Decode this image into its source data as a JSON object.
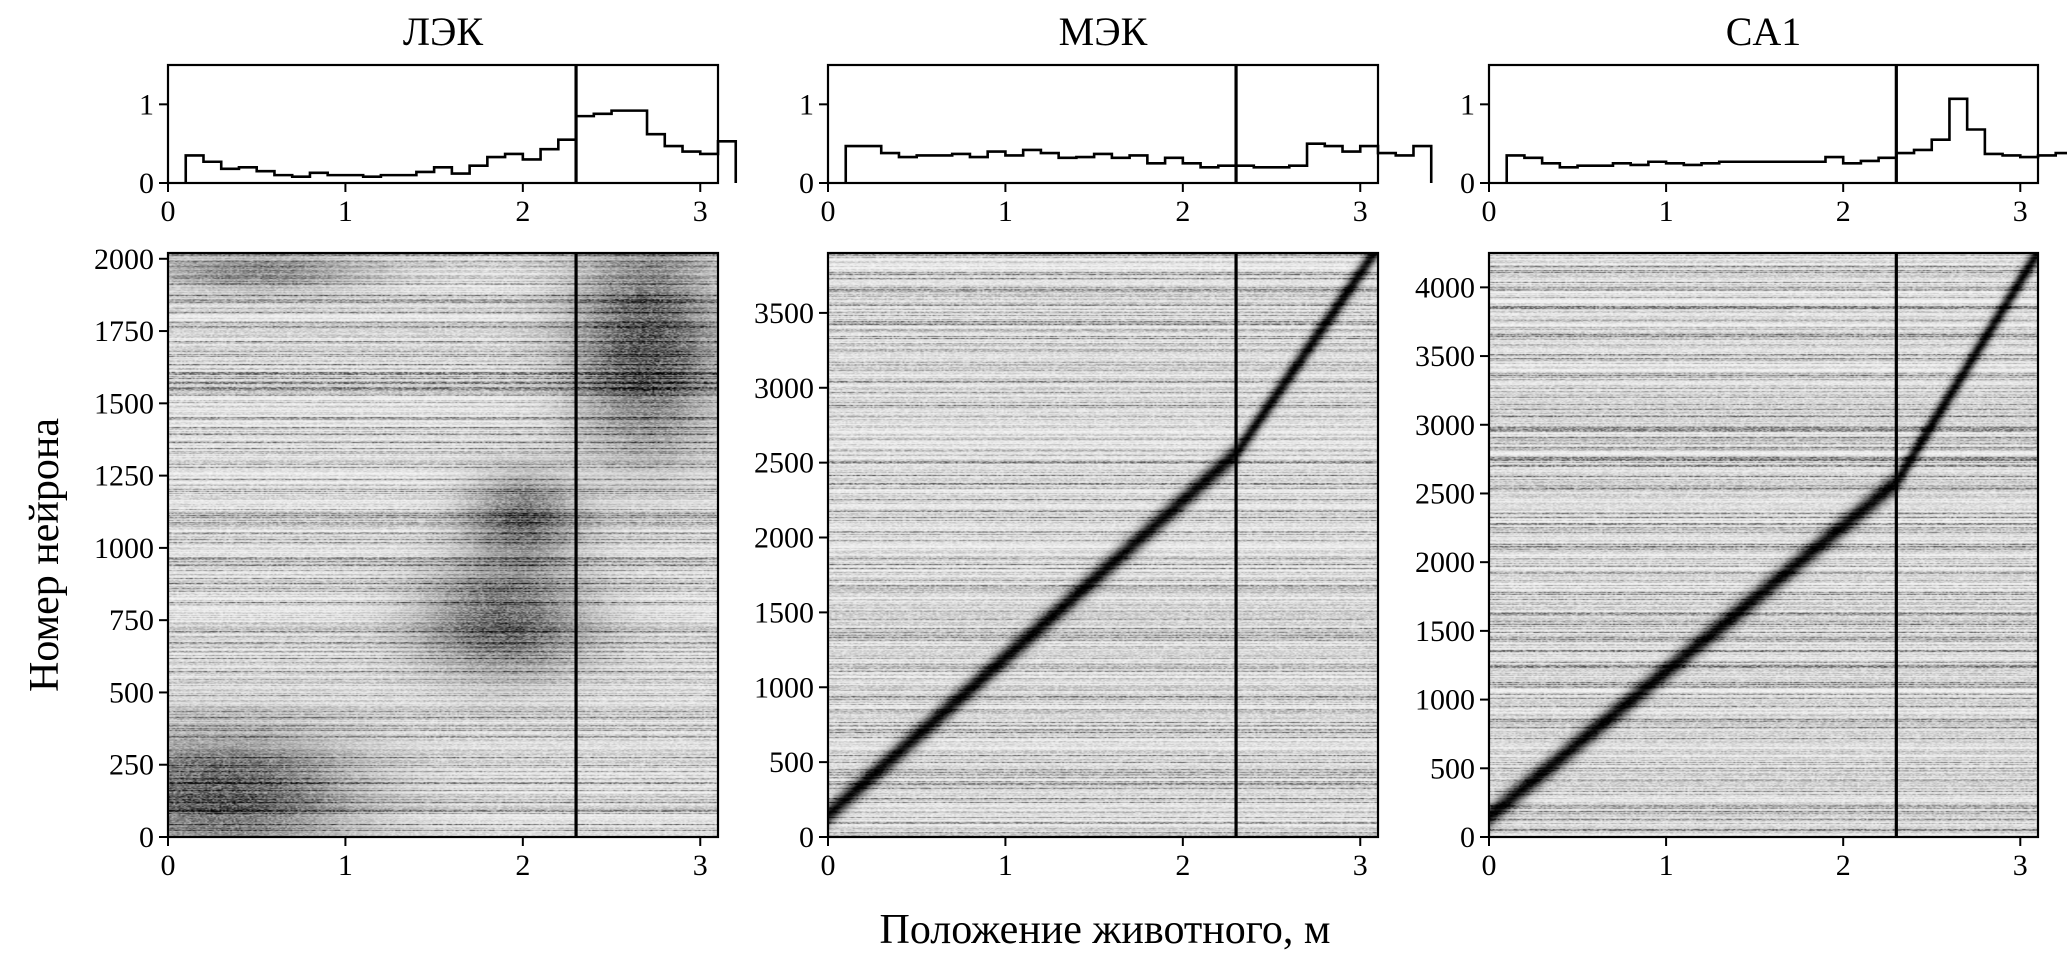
{
  "figure": {
    "xlabel": "Положение животного, м",
    "ylabel": "Номер нейрона"
  },
  "chart_data": [
    {
      "type": "bar",
      "title": "ЛЭК",
      "xlim": [
        0,
        3.1
      ],
      "ylim": [
        0,
        1.5
      ],
      "xticks": [
        "0",
        "1",
        "2",
        "3"
      ],
      "yticks": [
        "0",
        "1"
      ],
      "bin_width": 0.1,
      "bin_start": 0.1,
      "values": [
        0.35,
        0.27,
        0.18,
        0.2,
        0.15,
        0.1,
        0.08,
        0.13,
        0.1,
        0.1,
        0.08,
        0.1,
        0.1,
        0.14,
        0.2,
        0.12,
        0.22,
        0.33,
        0.37,
        0.3,
        0.43,
        0.55,
        0.85,
        0.88,
        0.92,
        0.92,
        0.62,
        0.47,
        0.4,
        0.37,
        0.53
      ],
      "marker_x": 2.3
    },
    {
      "type": "bar",
      "title": "МЭК",
      "xlim": [
        0,
        3.1
      ],
      "ylim": [
        0,
        1.5
      ],
      "xticks": [
        "0",
        "1",
        "2",
        "3"
      ],
      "yticks": [
        "0",
        "1"
      ],
      "bin_width": 0.1,
      "bin_start": 0.1,
      "values": [
        0.47,
        0.47,
        0.38,
        0.33,
        0.35,
        0.35,
        0.37,
        0.33,
        0.4,
        0.35,
        0.42,
        0.38,
        0.32,
        0.33,
        0.37,
        0.32,
        0.35,
        0.25,
        0.32,
        0.25,
        0.2,
        0.22,
        0.22,
        0.2,
        0.2,
        0.22,
        0.5,
        0.47,
        0.4,
        0.47,
        0.38,
        0.35,
        0.47
      ],
      "marker_x": 2.3
    },
    {
      "type": "bar",
      "title": "CA1",
      "xlim": [
        0,
        3.1
      ],
      "ylim": [
        0,
        1.5
      ],
      "xticks": [
        "0",
        "1",
        "2",
        "3"
      ],
      "yticks": [
        "0",
        "1"
      ],
      "bin_width": 0.1,
      "bin_start": 0.1,
      "values": [
        0.35,
        0.32,
        0.25,
        0.2,
        0.22,
        0.22,
        0.25,
        0.23,
        0.27,
        0.25,
        0.23,
        0.25,
        0.27,
        0.27,
        0.27,
        0.27,
        0.27,
        0.27,
        0.33,
        0.25,
        0.28,
        0.32,
        0.38,
        0.42,
        0.55,
        1.07,
        0.68,
        0.37,
        0.35,
        0.33,
        0.35,
        0.38
      ],
      "marker_x": 2.3
    },
    {
      "type": "heatmap",
      "title": "",
      "xlim": [
        0,
        3.1
      ],
      "ylim": [
        0,
        2020
      ],
      "xticks": [
        "0",
        "1",
        "2",
        "3"
      ],
      "yticks": [
        "0",
        "250",
        "500",
        "750",
        "1000",
        "1250",
        "1500",
        "1750",
        "2000"
      ],
      "colormap": "gray_r",
      "n_neurons": 2020,
      "marker_x": 2.3,
      "activity_regions": [
        {
          "x": 0.3,
          "y": 150,
          "rx": 0.7,
          "ry": 200,
          "strength": 0.55
        },
        {
          "x": 1.9,
          "y": 750,
          "rx": 0.45,
          "ry": 180,
          "strength": 0.5
        },
        {
          "x": 2.0,
          "y": 1100,
          "rx": 0.3,
          "ry": 150,
          "strength": 0.45
        },
        {
          "x": 2.7,
          "y": 1700,
          "rx": 0.4,
          "ry": 350,
          "strength": 0.55
        },
        {
          "x": 0.5,
          "y": 1950,
          "rx": 0.6,
          "ry": 60,
          "strength": 0.35
        }
      ]
    },
    {
      "type": "heatmap",
      "title": "",
      "xlim": [
        0,
        3.1
      ],
      "ylim": [
        0,
        3900
      ],
      "xticks": [
        "0",
        "1",
        "2",
        "3"
      ],
      "yticks": [
        "0",
        "500",
        "1000",
        "1500",
        "2000",
        "2500",
        "3000",
        "3500"
      ],
      "colormap": "gray_r",
      "n_neurons": 3900,
      "marker_x": 2.3,
      "diagonal": {
        "x0": 0.05,
        "y0": 200,
        "x1": 2.3,
        "y1": 2560,
        "x2": 3.05,
        "y2": 3850
      }
    },
    {
      "type": "heatmap",
      "title": "",
      "xlim": [
        0,
        3.1
      ],
      "ylim": [
        0,
        4250
      ],
      "xticks": [
        "0",
        "1",
        "2",
        "3"
      ],
      "yticks": [
        "0",
        "500",
        "1000",
        "1500",
        "2000",
        "2500",
        "3000",
        "3500",
        "4000"
      ],
      "colormap": "gray_r",
      "n_neurons": 4250,
      "marker_x": 2.3,
      "diagonal": {
        "x0": 0.05,
        "y0": 200,
        "x1": 2.3,
        "y1": 2580,
        "x2": 3.05,
        "y2": 4150
      }
    }
  ]
}
